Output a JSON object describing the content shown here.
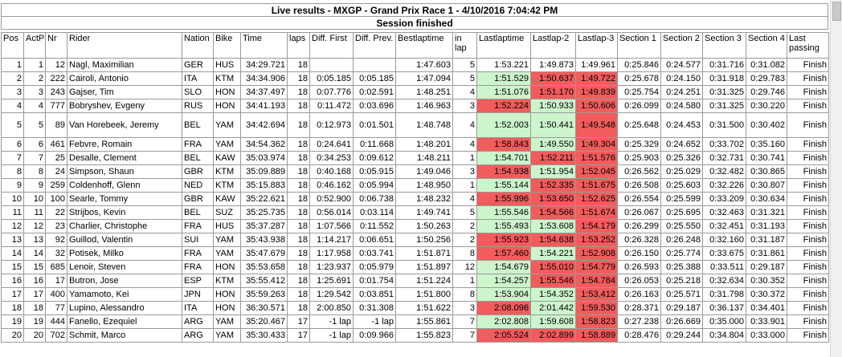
{
  "title": "Live results - MXGP - Grand Prix Race 1 - 4/10/2016 7:04:42 PM",
  "status": "Session finished",
  "colors": {
    "green": "#ccf5cc",
    "red": "#f25c5c"
  },
  "columns": [
    "Pos",
    "ActP",
    "Nr",
    "Rider",
    "Nation",
    "Bike",
    "Time",
    "laps",
    "Diff. First",
    "Diff. Prev.",
    "Bestlaptime",
    "in lap",
    "Lastlaptime",
    "Lastlap-2",
    "Lastlap-3",
    "Section 1",
    "Section 2",
    "Section 3",
    "Section 4",
    "Last passing"
  ],
  "rows": [
    {
      "pos": "1",
      "actp": "1",
      "nr": "12",
      "rider": "Nagl, Maximilian",
      "nation": "GER",
      "bike": "HUS",
      "time": "34:29.721",
      "laps": "18",
      "diff_first": "",
      "diff_prev": "",
      "best": "1:47.603",
      "inlap": "5",
      "last": "1:53.221",
      "last2": "1:49.873",
      "last3": "1:49.961",
      "s1": "0:25.846",
      "s2": "0:24.577",
      "s3": "0:31.716",
      "s4": "0:31.082",
      "passing": "Finish",
      "c1": "",
      "c2": "",
      "c3": ""
    },
    {
      "pos": "2",
      "actp": "2",
      "nr": "222",
      "rider": "Cairoli, Antonio",
      "nation": "ITA",
      "bike": "KTM",
      "time": "34:34.906",
      "laps": "18",
      "diff_first": "0:05.185",
      "diff_prev": "0:05.185",
      "best": "1:47.094",
      "inlap": "5",
      "last": "1:51.529",
      "last2": "1:50.637",
      "last3": "1:49.722",
      "s1": "0:25.678",
      "s2": "0:24.150",
      "s3": "0:31.918",
      "s4": "0:29.783",
      "passing": "Finish",
      "c1": "green",
      "c2": "red",
      "c3": "red"
    },
    {
      "pos": "3",
      "actp": "3",
      "nr": "243",
      "rider": "Gajser, Tim",
      "nation": "SLO",
      "bike": "HON",
      "time": "34:37.497",
      "laps": "18",
      "diff_first": "0:07.776",
      "diff_prev": "0:02.591",
      "best": "1:48.251",
      "inlap": "4",
      "last": "1:51.076",
      "last2": "1:51.170",
      "last3": "1:49.839",
      "s1": "0:25.754",
      "s2": "0:24.251",
      "s3": "0:31.325",
      "s4": "0:29.746",
      "passing": "Finish",
      "c1": "green",
      "c2": "red",
      "c3": "red"
    },
    {
      "pos": "4",
      "actp": "4",
      "nr": "777",
      "rider": "Bobryshev, Evgeny",
      "nation": "RUS",
      "bike": "HON",
      "time": "34:41.193",
      "laps": "18",
      "diff_first": "0:11.472",
      "diff_prev": "0:03.696",
      "best": "1:46.963",
      "inlap": "3",
      "last": "1:52.224",
      "last2": "1:50.933",
      "last3": "1:50.606",
      "s1": "0:26.099",
      "s2": "0:24.580",
      "s3": "0:31.325",
      "s4": "0:30.220",
      "passing": "Finish",
      "c1": "red",
      "c2": "green",
      "c3": "red"
    },
    {
      "pos": "5",
      "actp": "5",
      "nr": "89",
      "rider": "Van Horebeek, Jeremy",
      "nation": "BEL",
      "bike": "YAM",
      "time": "34:42.694",
      "laps": "18",
      "diff_first": "0:12.973",
      "diff_prev": "0:01.501",
      "best": "1:48.748",
      "inlap": "4",
      "last": "1:52.003",
      "last2": "1:50.441",
      "last3": "1:49.548",
      "s1": "0:25.648",
      "s2": "0:24.453",
      "s3": "0:31.500",
      "s4": "0:30.402",
      "passing": "Finish",
      "c1": "green",
      "c2": "green",
      "c3": "red"
    },
    {
      "pos": "6",
      "actp": "6",
      "nr": "461",
      "rider": "Febvre, Romain",
      "nation": "FRA",
      "bike": "YAM",
      "time": "34:54.362",
      "laps": "18",
      "diff_first": "0:24.641",
      "diff_prev": "0:11.668",
      "best": "1:48.201",
      "inlap": "4",
      "last": "1:58.843",
      "last2": "1:49.550",
      "last3": "1:49.304",
      "s1": "0:25.329",
      "s2": "0:24.652",
      "s3": "0:33.702",
      "s4": "0:35.160",
      "passing": "Finish",
      "c1": "red",
      "c2": "green",
      "c3": "red"
    },
    {
      "pos": "7",
      "actp": "7",
      "nr": "25",
      "rider": "Desalle, Clement",
      "nation": "BEL",
      "bike": "KAW",
      "time": "35:03.974",
      "laps": "18",
      "diff_first": "0:34.253",
      "diff_prev": "0:09.612",
      "best": "1:48.211",
      "inlap": "1",
      "last": "1:54.701",
      "last2": "1:52.211",
      "last3": "1:51.576",
      "s1": "0:25.903",
      "s2": "0:25.326",
      "s3": "0:32.731",
      "s4": "0:30.741",
      "passing": "Finish",
      "c1": "green",
      "c2": "red",
      "c3": "red"
    },
    {
      "pos": "8",
      "actp": "8",
      "nr": "24",
      "rider": "Simpson, Shaun",
      "nation": "GBR",
      "bike": "KTM",
      "time": "35:09.889",
      "laps": "18",
      "diff_first": "0:40.168",
      "diff_prev": "0:05.915",
      "best": "1:49.046",
      "inlap": "3",
      "last": "1:54.938",
      "last2": "1:51.954",
      "last3": "1:52.045",
      "s1": "0:26.562",
      "s2": "0:25.029",
      "s3": "0:32.482",
      "s4": "0:30.865",
      "passing": "Finish",
      "c1": "red",
      "c2": "green",
      "c3": "red"
    },
    {
      "pos": "9",
      "actp": "9",
      "nr": "259",
      "rider": "Coldenhoff, Glenn",
      "nation": "NED",
      "bike": "KTM",
      "time": "35:15.883",
      "laps": "18",
      "diff_first": "0:46.162",
      "diff_prev": "0:05.994",
      "best": "1:48.950",
      "inlap": "1",
      "last": "1:55.144",
      "last2": "1:52.335",
      "last3": "1:51.675",
      "s1": "0:26.508",
      "s2": "0:25.603",
      "s3": "0:32.226",
      "s4": "0:30.807",
      "passing": "Finish",
      "c1": "green",
      "c2": "red",
      "c3": "red"
    },
    {
      "pos": "10",
      "actp": "10",
      "nr": "100",
      "rider": "Searle, Tommy",
      "nation": "GBR",
      "bike": "KAW",
      "time": "35:22.621",
      "laps": "18",
      "diff_first": "0:52.900",
      "diff_prev": "0:06.738",
      "best": "1:48.232",
      "inlap": "4",
      "last": "1:55.996",
      "last2": "1:53.650",
      "last3": "1:52.625",
      "s1": "0:26.554",
      "s2": "0:25.599",
      "s3": "0:33.209",
      "s4": "0:30.634",
      "passing": "Finish",
      "c1": "red",
      "c2": "red",
      "c3": "red"
    },
    {
      "pos": "11",
      "actp": "11",
      "nr": "22",
      "rider": "Strijbos, Kevin",
      "nation": "BEL",
      "bike": "SUZ",
      "time": "35:25.735",
      "laps": "18",
      "diff_first": "0:56.014",
      "diff_prev": "0:03.114",
      "best": "1:49.741",
      "inlap": "5",
      "last": "1:55.546",
      "last2": "1:54.566",
      "last3": "1:51.674",
      "s1": "0:26.067",
      "s2": "0:25.695",
      "s3": "0:32.463",
      "s4": "0:31.321",
      "passing": "Finish",
      "c1": "green",
      "c2": "red",
      "c3": "red"
    },
    {
      "pos": "12",
      "actp": "12",
      "nr": "23",
      "rider": "Charlier, Christophe",
      "nation": "FRA",
      "bike": "HUS",
      "time": "35:37.287",
      "laps": "18",
      "diff_first": "1:07.566",
      "diff_prev": "0:11.552",
      "best": "1:50.263",
      "inlap": "2",
      "last": "1:55.493",
      "last2": "1:53.608",
      "last3": "1:54.179",
      "s1": "0:26.299",
      "s2": "0:25.550",
      "s3": "0:32.451",
      "s4": "0:31.193",
      "passing": "Finish",
      "c1": "green",
      "c2": "green",
      "c3": "red"
    },
    {
      "pos": "13",
      "actp": "13",
      "nr": "92",
      "rider": "Guillod, Valentin",
      "nation": "SUI",
      "bike": "YAM",
      "time": "35:43.938",
      "laps": "18",
      "diff_first": "1:14.217",
      "diff_prev": "0:06.651",
      "best": "1:50.256",
      "inlap": "2",
      "last": "1:55.923",
      "last2": "1:54.638",
      "last3": "1:53.252",
      "s1": "0:26.328",
      "s2": "0:26.248",
      "s3": "0:32.160",
      "s4": "0:31.187",
      "passing": "Finish",
      "c1": "red",
      "c2": "red",
      "c3": "red"
    },
    {
      "pos": "14",
      "actp": "14",
      "nr": "32",
      "rider": "Potisek, Milko",
      "nation": "FRA",
      "bike": "YAM",
      "time": "35:47.679",
      "laps": "18",
      "diff_first": "1:17.958",
      "diff_prev": "0:03.741",
      "best": "1:51.871",
      "inlap": "8",
      "last": "1:57.460",
      "last2": "1:54.221",
      "last3": "1:52.908",
      "s1": "0:26.150",
      "s2": "0:25.774",
      "s3": "0:33.675",
      "s4": "0:31.861",
      "passing": "Finish",
      "c1": "red",
      "c2": "green",
      "c3": "red"
    },
    {
      "pos": "15",
      "actp": "15",
      "nr": "685",
      "rider": "Lenoir, Steven",
      "nation": "FRA",
      "bike": "HON",
      "time": "35:53.658",
      "laps": "18",
      "diff_first": "1:23.937",
      "diff_prev": "0:05.979",
      "best": "1:51.897",
      "inlap": "12",
      "last": "1:54.679",
      "last2": "1:55.010",
      "last3": "1:54.779",
      "s1": "0:26.593",
      "s2": "0:25.388",
      "s3": "0:33.511",
      "s4": "0:29.187",
      "passing": "Finish",
      "c1": "green",
      "c2": "red",
      "c3": "red"
    },
    {
      "pos": "16",
      "actp": "16",
      "nr": "17",
      "rider": "Butron, Jose",
      "nation": "ESP",
      "bike": "KTM",
      "time": "35:55.412",
      "laps": "18",
      "diff_first": "1:25.691",
      "diff_prev": "0:01.754",
      "best": "1:51.224",
      "inlap": "1",
      "last": "1:54.257",
      "last2": "1:55.546",
      "last3": "1:54.784",
      "s1": "0:26.053",
      "s2": "0:25.218",
      "s3": "0:32.634",
      "s4": "0:30.352",
      "passing": "Finish",
      "c1": "green",
      "c2": "red",
      "c3": "red"
    },
    {
      "pos": "17",
      "actp": "17",
      "nr": "400",
      "rider": "Yamamoto, Kei",
      "nation": "JPN",
      "bike": "HON",
      "time": "35:59.263",
      "laps": "18",
      "diff_first": "1:29.542",
      "diff_prev": "0:03.851",
      "best": "1:51.800",
      "inlap": "8",
      "last": "1:53.904",
      "last2": "1:54.352",
      "last3": "1:53.412",
      "s1": "0:26.163",
      "s2": "0:25.571",
      "s3": "0:31.798",
      "s4": "0:30.372",
      "passing": "Finish",
      "c1": "green",
      "c2": "green",
      "c3": "red"
    },
    {
      "pos": "18",
      "actp": "18",
      "nr": "77",
      "rider": "Lupino, Alessandro",
      "nation": "ITA",
      "bike": "HON",
      "time": "36:30.571",
      "laps": "18",
      "diff_first": "2:00.850",
      "diff_prev": "0:31.308",
      "best": "1:51.622",
      "inlap": "3",
      "last": "2:08.096",
      "last2": "2:01.442",
      "last3": "1:59.530",
      "s1": "0:28.371",
      "s2": "0:29.187",
      "s3": "0:36.137",
      "s4": "0:34.401",
      "passing": "Finish",
      "c1": "red",
      "c2": "green",
      "c3": "red"
    },
    {
      "pos": "19",
      "actp": "19",
      "nr": "444",
      "rider": "Fanello, Ezequiel",
      "nation": "ARG",
      "bike": "YAM",
      "time": "35:20.467",
      "laps": "17",
      "diff_first": "-1 lap",
      "diff_prev": "-1 lap",
      "best": "1:55.861",
      "inlap": "7",
      "last": "2:02.808",
      "last2": "1:59.608",
      "last3": "1:58.823",
      "s1": "0:27.238",
      "s2": "0:26.669",
      "s3": "0:35.000",
      "s4": "0:33.901",
      "passing": "Finish",
      "c1": "green",
      "c2": "green",
      "c3": "red"
    },
    {
      "pos": "20",
      "actp": "20",
      "nr": "702",
      "rider": "Schmit, Marco",
      "nation": "ARG",
      "bike": "YAM",
      "time": "35:30.433",
      "laps": "17",
      "diff_first": "-1 lap",
      "diff_prev": "0:09.966",
      "best": "1:55.823",
      "inlap": "7",
      "last": "2:05.524",
      "last2": "2:02.899",
      "last3": "1:58.889",
      "s1": "0:28.476",
      "s2": "0:29.244",
      "s3": "0:34.804",
      "s4": "0:33.000",
      "passing": "Finish",
      "c1": "red",
      "c2": "red",
      "c3": "red"
    }
  ]
}
